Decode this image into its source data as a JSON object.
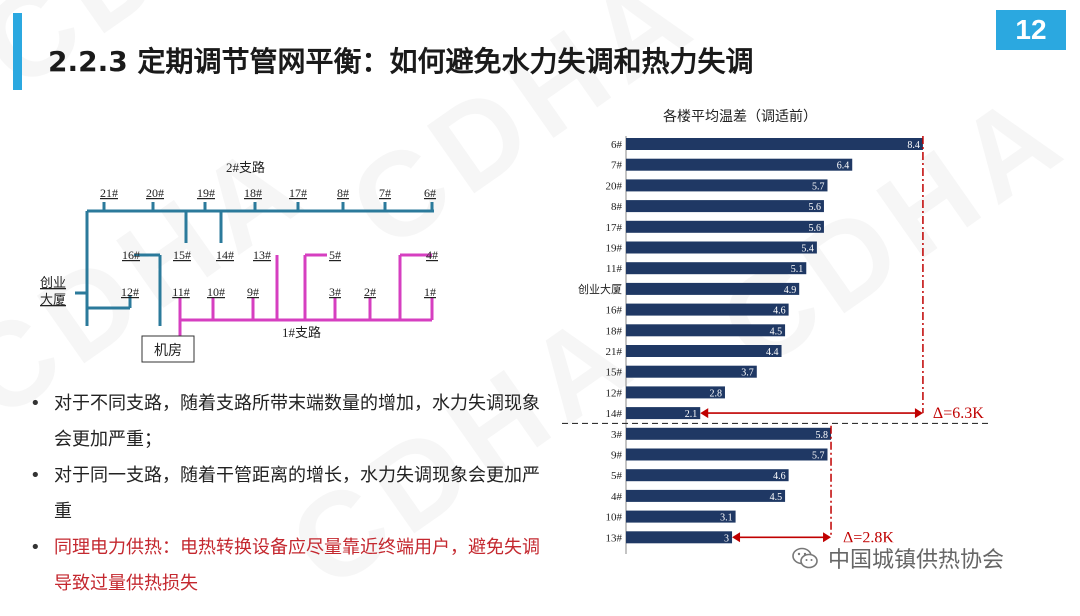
{
  "header": {
    "title": "2.2.3 定期调节管网平衡：如何避免水力失调和热力失调",
    "page_number": "12",
    "watermark": "CDHA"
  },
  "diagram": {
    "branch2_label": "2#支路",
    "branch1_label": "1#支路",
    "plant_label": "机房",
    "building_label": "创业\n大厦",
    "branch2_top_nodes": [
      "21#",
      "20#",
      "19#",
      "18#",
      "17#",
      "8#",
      "7#",
      "6#"
    ],
    "branch2_mid_nodes": [
      "16#",
      "15#",
      "14#"
    ],
    "branch2_low_nodes": [
      "12#"
    ],
    "branch1_upper_nodes": [
      "13#",
      "5#",
      "4#"
    ],
    "branch1_lower_nodes": [
      "11#",
      "10#",
      "9#",
      "3#",
      "2#",
      "1#"
    ]
  },
  "bullets": [
    "对于不同支路，随着支路所带末端数量的增加，水力失调现象会更加严重；",
    "对于同一支路，随着干管距离的增长，水力失调现象会更加严重",
    "同理电力供热：电热转换设备应尽量靠近终端用户，避免失调导致过量供热损失"
  ],
  "chart_data": {
    "type": "bar",
    "orientation": "horizontal",
    "title": "各楼平均温差（调适前）",
    "categories": [
      "6#",
      "7#",
      "20#",
      "8#",
      "17#",
      "19#",
      "11#",
      "创业大厦",
      "16#",
      "18#",
      "21#",
      "15#",
      "12#",
      "14#",
      "3#",
      "9#",
      "5#",
      "4#",
      "10#",
      "13#"
    ],
    "values": [
      8.4,
      6.4,
      5.7,
      5.6,
      5.6,
      5.4,
      5.1,
      4.9,
      4.6,
      4.5,
      4.4,
      3.7,
      2.8,
      2.1,
      5.8,
      5.7,
      4.6,
      4.5,
      3.1,
      3
    ],
    "xlim": [
      0,
      8.6
    ],
    "bar_color": "#1f3864",
    "annotations": [
      {
        "text": "Δ=6.3K",
        "from": "6#",
        "to": "14#"
      },
      {
        "text": "Δ=2.8K",
        "from": "3#",
        "to": "13#"
      }
    ],
    "annotation_color": "#c00000",
    "group_divider_after": "14#"
  },
  "footer": {
    "text": "中国城镇供热协会",
    "icon": "wechat-icon"
  }
}
